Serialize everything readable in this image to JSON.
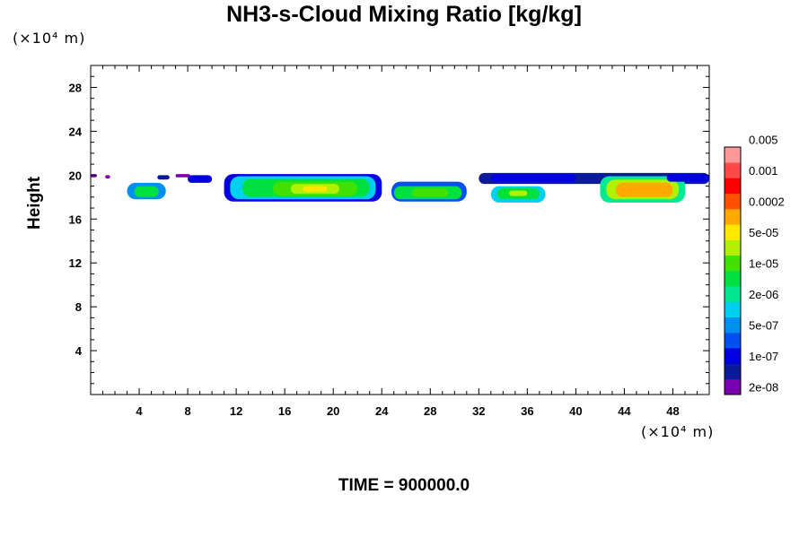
{
  "chart_data": {
    "type": "heatmap",
    "title": "NH3-s-Cloud Mixing Ratio [kg/kg]",
    "xlabel": "",
    "ylabel": "Height",
    "x_unit": "(×10⁴ m)",
    "y_unit": "(×10⁴ m)",
    "xlim": [
      0,
      51
    ],
    "ylim": [
      0,
      30
    ],
    "x_ticks": [
      4,
      8,
      12,
      16,
      20,
      24,
      28,
      32,
      36,
      40,
      44,
      48
    ],
    "y_ticks": [
      4,
      8,
      12,
      16,
      20,
      24,
      28
    ],
    "colorbar": {
      "colors": [
        "#7a00b0",
        "#0a1a9a",
        "#0000e0",
        "#0050f0",
        "#0090f0",
        "#00d0f0",
        "#00e890",
        "#00e040",
        "#40e000",
        "#b0f000",
        "#ffe800",
        "#ffa800",
        "#ff5000",
        "#ff0000",
        "#ff4848",
        "#ff9898"
      ],
      "labels": [
        "2e-08",
        "1e-07",
        "5e-07",
        "2e-06",
        "1e-05",
        "5e-05",
        "0.0002",
        "0.001",
        "0.005"
      ]
    },
    "regions": [
      {
        "x0": 0.0,
        "x1": 0.5,
        "y0": 19.8,
        "y1": 20.1,
        "level": 0
      },
      {
        "x0": 1.2,
        "x1": 1.6,
        "y0": 19.7,
        "y1": 20.0,
        "level": 0
      },
      {
        "x0": 3.0,
        "x1": 6.2,
        "y0": 17.8,
        "y1": 19.3,
        "level": 4
      },
      {
        "x0": 3.6,
        "x1": 5.6,
        "y0": 18.0,
        "y1": 19.0,
        "level": 7
      },
      {
        "x0": 5.5,
        "x1": 6.5,
        "y0": 19.6,
        "y1": 20.0,
        "level": 1
      },
      {
        "x0": 7.0,
        "x1": 8.2,
        "y0": 19.8,
        "y1": 20.1,
        "level": 0
      },
      {
        "x0": 8.0,
        "x1": 10.0,
        "y0": 19.3,
        "y1": 20.0,
        "level": 2
      },
      {
        "x0": 11.0,
        "x1": 24.0,
        "y0": 17.6,
        "y1": 20.1,
        "level": 2
      },
      {
        "x0": 11.5,
        "x1": 23.5,
        "y0": 17.8,
        "y1": 19.9,
        "level": 5
      },
      {
        "x0": 12.5,
        "x1": 23.0,
        "y0": 18.0,
        "y1": 19.7,
        "level": 7
      },
      {
        "x0": 15.0,
        "x1": 22.0,
        "y0": 18.1,
        "y1": 19.4,
        "level": 8
      },
      {
        "x0": 16.5,
        "x1": 20.5,
        "y0": 18.3,
        "y1": 19.2,
        "level": 9
      },
      {
        "x0": 17.5,
        "x1": 19.5,
        "y0": 18.5,
        "y1": 19.0,
        "level": 10
      },
      {
        "x0": 24.8,
        "x1": 31.0,
        "y0": 17.6,
        "y1": 19.4,
        "level": 3
      },
      {
        "x0": 25.0,
        "x1": 30.6,
        "y0": 17.8,
        "y1": 19.0,
        "level": 7
      },
      {
        "x0": 26.5,
        "x1": 29.5,
        "y0": 18.0,
        "y1": 18.8,
        "level": 8
      },
      {
        "x0": 32.0,
        "x1": 51.0,
        "y0": 19.2,
        "y1": 20.2,
        "level": 1
      },
      {
        "x0": 33.0,
        "x1": 40.0,
        "y0": 19.4,
        "y1": 20.1,
        "level": 2
      },
      {
        "x0": 33.0,
        "x1": 37.5,
        "y0": 17.5,
        "y1": 19.0,
        "level": 5
      },
      {
        "x0": 33.5,
        "x1": 37.0,
        "y0": 17.8,
        "y1": 18.8,
        "level": 7
      },
      {
        "x0": 34.5,
        "x1": 36.0,
        "y0": 18.1,
        "y1": 18.6,
        "level": 9
      },
      {
        "x0": 42.0,
        "x1": 49.0,
        "y0": 17.5,
        "y1": 19.9,
        "level": 6
      },
      {
        "x0": 42.5,
        "x1": 48.5,
        "y0": 17.8,
        "y1": 19.6,
        "level": 9
      },
      {
        "x0": 43.3,
        "x1": 48.0,
        "y0": 18.0,
        "y1": 19.3,
        "level": 11
      },
      {
        "x0": 47.5,
        "x1": 51.0,
        "y0": 19.4,
        "y1": 20.1,
        "level": 2
      }
    ]
  },
  "footer": {
    "time_label": "TIME = 900000.0"
  }
}
